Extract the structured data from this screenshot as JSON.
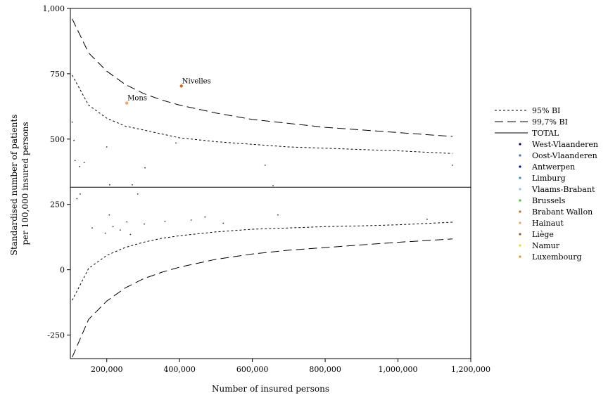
{
  "chart_data": {
    "type": "scatter",
    "xlabel": "Number of insured persons",
    "ylabel_lines": [
      "Standardised number of patients",
      "per 100,000 insured persons"
    ],
    "xlim": [
      100000,
      1200000
    ],
    "ylim": [
      -340,
      1000
    ],
    "xticks": [
      200000,
      400000,
      600000,
      800000,
      1000000,
      1200000
    ],
    "xtick_labels": [
      "200,000",
      "400,000",
      "600,000",
      "800,000",
      "1,000,000",
      "1,200,000"
    ],
    "yticks": [
      -250,
      0,
      250,
      500,
      750,
      1000
    ],
    "ytick_labels": [
      "-250",
      "0",
      "250",
      "500",
      "750",
      "1,000"
    ],
    "legend_position": "right",
    "lines": [
      {
        "name": "95% BI",
        "style": "dotted",
        "color": "#000000",
        "x": [
          105000,
          150000,
          200000,
          250000,
          300000,
          350000,
          400000,
          500000,
          600000,
          700000,
          800000,
          900000,
          1000000,
          1150000
        ],
        "upper": [
          745,
          630,
          580,
          550,
          535,
          520,
          505,
          490,
          480,
          470,
          465,
          460,
          455,
          445
        ],
        "lower": [
          -117,
          5,
          55,
          85,
          105,
          120,
          130,
          145,
          155,
          160,
          165,
          168,
          172,
          182
        ]
      },
      {
        "name": "99,7% BI",
        "style": "dashed",
        "color": "#000000",
        "x": [
          105000,
          150000,
          200000,
          250000,
          300000,
          350000,
          400000,
          500000,
          600000,
          700000,
          800000,
          900000,
          1000000,
          1150000
        ],
        "upper": [
          960,
          830,
          760,
          710,
          675,
          650,
          630,
          600,
          575,
          560,
          545,
          535,
          525,
          510
        ],
        "lower": [
          -335,
          -190,
          -120,
          -70,
          -35,
          -10,
          10,
          40,
          60,
          75,
          85,
          95,
          105,
          118
        ]
      },
      {
        "name": "TOTAL",
        "style": "solid",
        "color": "#000000",
        "y": 316
      }
    ],
    "series": [
      {
        "name": "West-Vlaanderen",
        "color": "#00008b",
        "points": []
      },
      {
        "name": "Oost-Vlaanderen",
        "color": "#4169e1",
        "points": []
      },
      {
        "name": "Antwerpen",
        "color": "#0000cd",
        "points": []
      },
      {
        "name": "Limburg",
        "color": "#1e90ff",
        "points": []
      },
      {
        "name": "Vlaams-Brabant",
        "color": "#87cefa",
        "points": []
      },
      {
        "name": "Brussels",
        "color": "#32cd32",
        "points": []
      },
      {
        "name": "Brabant Wallon",
        "color": "#d2691e",
        "points": [
          [
            405000,
            703
          ]
        ]
      },
      {
        "name": "Hainaut",
        "color": "#f4a460",
        "points": [
          [
            255000,
            638
          ]
        ]
      },
      {
        "name": "Liège",
        "color": "#a0522d",
        "points": []
      },
      {
        "name": "Namur",
        "color": "#ffd700",
        "points": []
      },
      {
        "name": "Luxembourg",
        "color": "#ff8c00",
        "points": []
      }
    ],
    "unlabeled_points": [
      [
        105000,
        565
      ],
      [
        110000,
        495
      ],
      [
        113000,
        418
      ],
      [
        118000,
        272
      ],
      [
        125000,
        395
      ],
      [
        127000,
        290
      ],
      [
        138000,
        410
      ],
      [
        160000,
        160
      ],
      [
        196000,
        140
      ],
      [
        200000,
        470
      ],
      [
        207000,
        210
      ],
      [
        208000,
        325
      ],
      [
        217000,
        165
      ],
      [
        237000,
        152
      ],
      [
        255000,
        183
      ],
      [
        265000,
        135
      ],
      [
        270000,
        325
      ],
      [
        285000,
        290
      ],
      [
        303000,
        175
      ],
      [
        305000,
        390
      ],
      [
        360000,
        185
      ],
      [
        390000,
        485
      ],
      [
        432000,
        190
      ],
      [
        470000,
        202
      ],
      [
        520000,
        178
      ],
      [
        635000,
        400
      ],
      [
        657000,
        322
      ],
      [
        670000,
        210
      ],
      [
        1080000,
        193
      ],
      [
        1150000,
        400
      ]
    ],
    "annotations": [
      {
        "text": "Nivelles",
        "x": 405000,
        "y": 703
      },
      {
        "text": "Mons",
        "x": 255000,
        "y": 638
      }
    ]
  }
}
